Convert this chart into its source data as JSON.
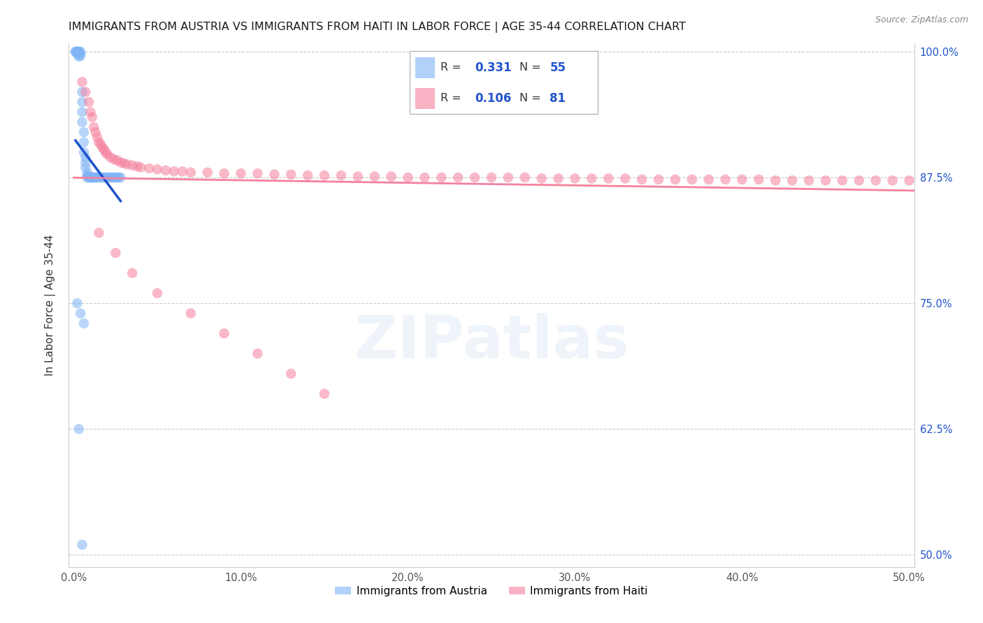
{
  "title": "IMMIGRANTS FROM AUSTRIA VS IMMIGRANTS FROM HAITI IN LABOR FORCE | AGE 35-44 CORRELATION CHART",
  "source": "Source: ZipAtlas.com",
  "ylabel_label": "In Labor Force | Age 35-44",
  "xlim": [
    -0.003,
    0.503
  ],
  "ylim": [
    0.488,
    1.008
  ],
  "y_tick_vals": [
    0.5,
    0.625,
    0.75,
    0.875,
    1.0
  ],
  "x_tick_vals": [
    0.0,
    0.1,
    0.2,
    0.3,
    0.4,
    0.5
  ],
  "austria_R": 0.331,
  "austria_N": 55,
  "haiti_R": 0.106,
  "haiti_N": 81,
  "austria_color": "#7EB3F5",
  "haiti_color": "#F5819E",
  "austria_line_color": "#1A52CC",
  "haiti_line_color": "#F5819E",
  "watermark": "ZIPatlas",
  "austria_x": [
    0.001,
    0.001,
    0.002,
    0.002,
    0.002,
    0.003,
    0.003,
    0.003,
    0.003,
    0.004,
    0.004,
    0.004,
    0.005,
    0.005,
    0.005,
    0.005,
    0.006,
    0.006,
    0.006,
    0.007,
    0.007,
    0.007,
    0.008,
    0.008,
    0.008,
    0.009,
    0.009,
    0.01,
    0.01,
    0.01,
    0.011,
    0.011,
    0.012,
    0.012,
    0.013,
    0.014,
    0.015,
    0.016,
    0.017,
    0.018,
    0.019,
    0.02,
    0.021,
    0.022,
    0.023,
    0.024,
    0.025,
    0.026,
    0.027,
    0.028,
    0.002,
    0.004,
    0.006,
    0.003,
    0.005
  ],
  "austria_y": [
    1.0,
    1.0,
    1.0,
    1.0,
    0.998,
    1.0,
    1.0,
    0.998,
    0.995,
    1.0,
    0.998,
    0.996,
    0.96,
    0.95,
    0.94,
    0.93,
    0.92,
    0.91,
    0.9,
    0.895,
    0.89,
    0.885,
    0.88,
    0.877,
    0.875,
    0.876,
    0.875,
    0.875,
    0.875,
    0.875,
    0.875,
    0.875,
    0.875,
    0.875,
    0.875,
    0.875,
    0.875,
    0.875,
    0.875,
    0.875,
    0.875,
    0.875,
    0.875,
    0.875,
    0.875,
    0.875,
    0.875,
    0.875,
    0.875,
    0.875,
    0.75,
    0.74,
    0.73,
    0.625,
    0.51
  ],
  "haiti_x": [
    0.005,
    0.007,
    0.009,
    0.01,
    0.011,
    0.012,
    0.013,
    0.014,
    0.015,
    0.016,
    0.017,
    0.018,
    0.019,
    0.02,
    0.022,
    0.024,
    0.026,
    0.028,
    0.03,
    0.032,
    0.035,
    0.038,
    0.04,
    0.045,
    0.05,
    0.055,
    0.06,
    0.065,
    0.07,
    0.08,
    0.09,
    0.1,
    0.11,
    0.12,
    0.13,
    0.14,
    0.15,
    0.16,
    0.17,
    0.18,
    0.19,
    0.2,
    0.21,
    0.22,
    0.23,
    0.24,
    0.25,
    0.26,
    0.27,
    0.28,
    0.29,
    0.3,
    0.31,
    0.32,
    0.33,
    0.34,
    0.35,
    0.36,
    0.37,
    0.38,
    0.39,
    0.4,
    0.41,
    0.42,
    0.43,
    0.44,
    0.45,
    0.46,
    0.47,
    0.48,
    0.49,
    0.5,
    0.015,
    0.025,
    0.035,
    0.05,
    0.07,
    0.09,
    0.11,
    0.13,
    0.15
  ],
  "haiti_y": [
    0.97,
    0.96,
    0.95,
    0.94,
    0.935,
    0.925,
    0.92,
    0.915,
    0.91,
    0.908,
    0.905,
    0.903,
    0.9,
    0.898,
    0.895,
    0.893,
    0.892,
    0.89,
    0.889,
    0.888,
    0.887,
    0.886,
    0.885,
    0.884,
    0.883,
    0.882,
    0.881,
    0.881,
    0.88,
    0.88,
    0.879,
    0.879,
    0.879,
    0.878,
    0.878,
    0.877,
    0.877,
    0.877,
    0.876,
    0.876,
    0.876,
    0.875,
    0.875,
    0.875,
    0.875,
    0.875,
    0.875,
    0.875,
    0.875,
    0.874,
    0.874,
    0.874,
    0.874,
    0.874,
    0.874,
    0.873,
    0.873,
    0.873,
    0.873,
    0.873,
    0.873,
    0.873,
    0.873,
    0.872,
    0.872,
    0.872,
    0.872,
    0.872,
    0.872,
    0.872,
    0.872,
    0.872,
    0.82,
    0.8,
    0.78,
    0.76,
    0.74,
    0.72,
    0.7,
    0.68,
    0.66
  ]
}
